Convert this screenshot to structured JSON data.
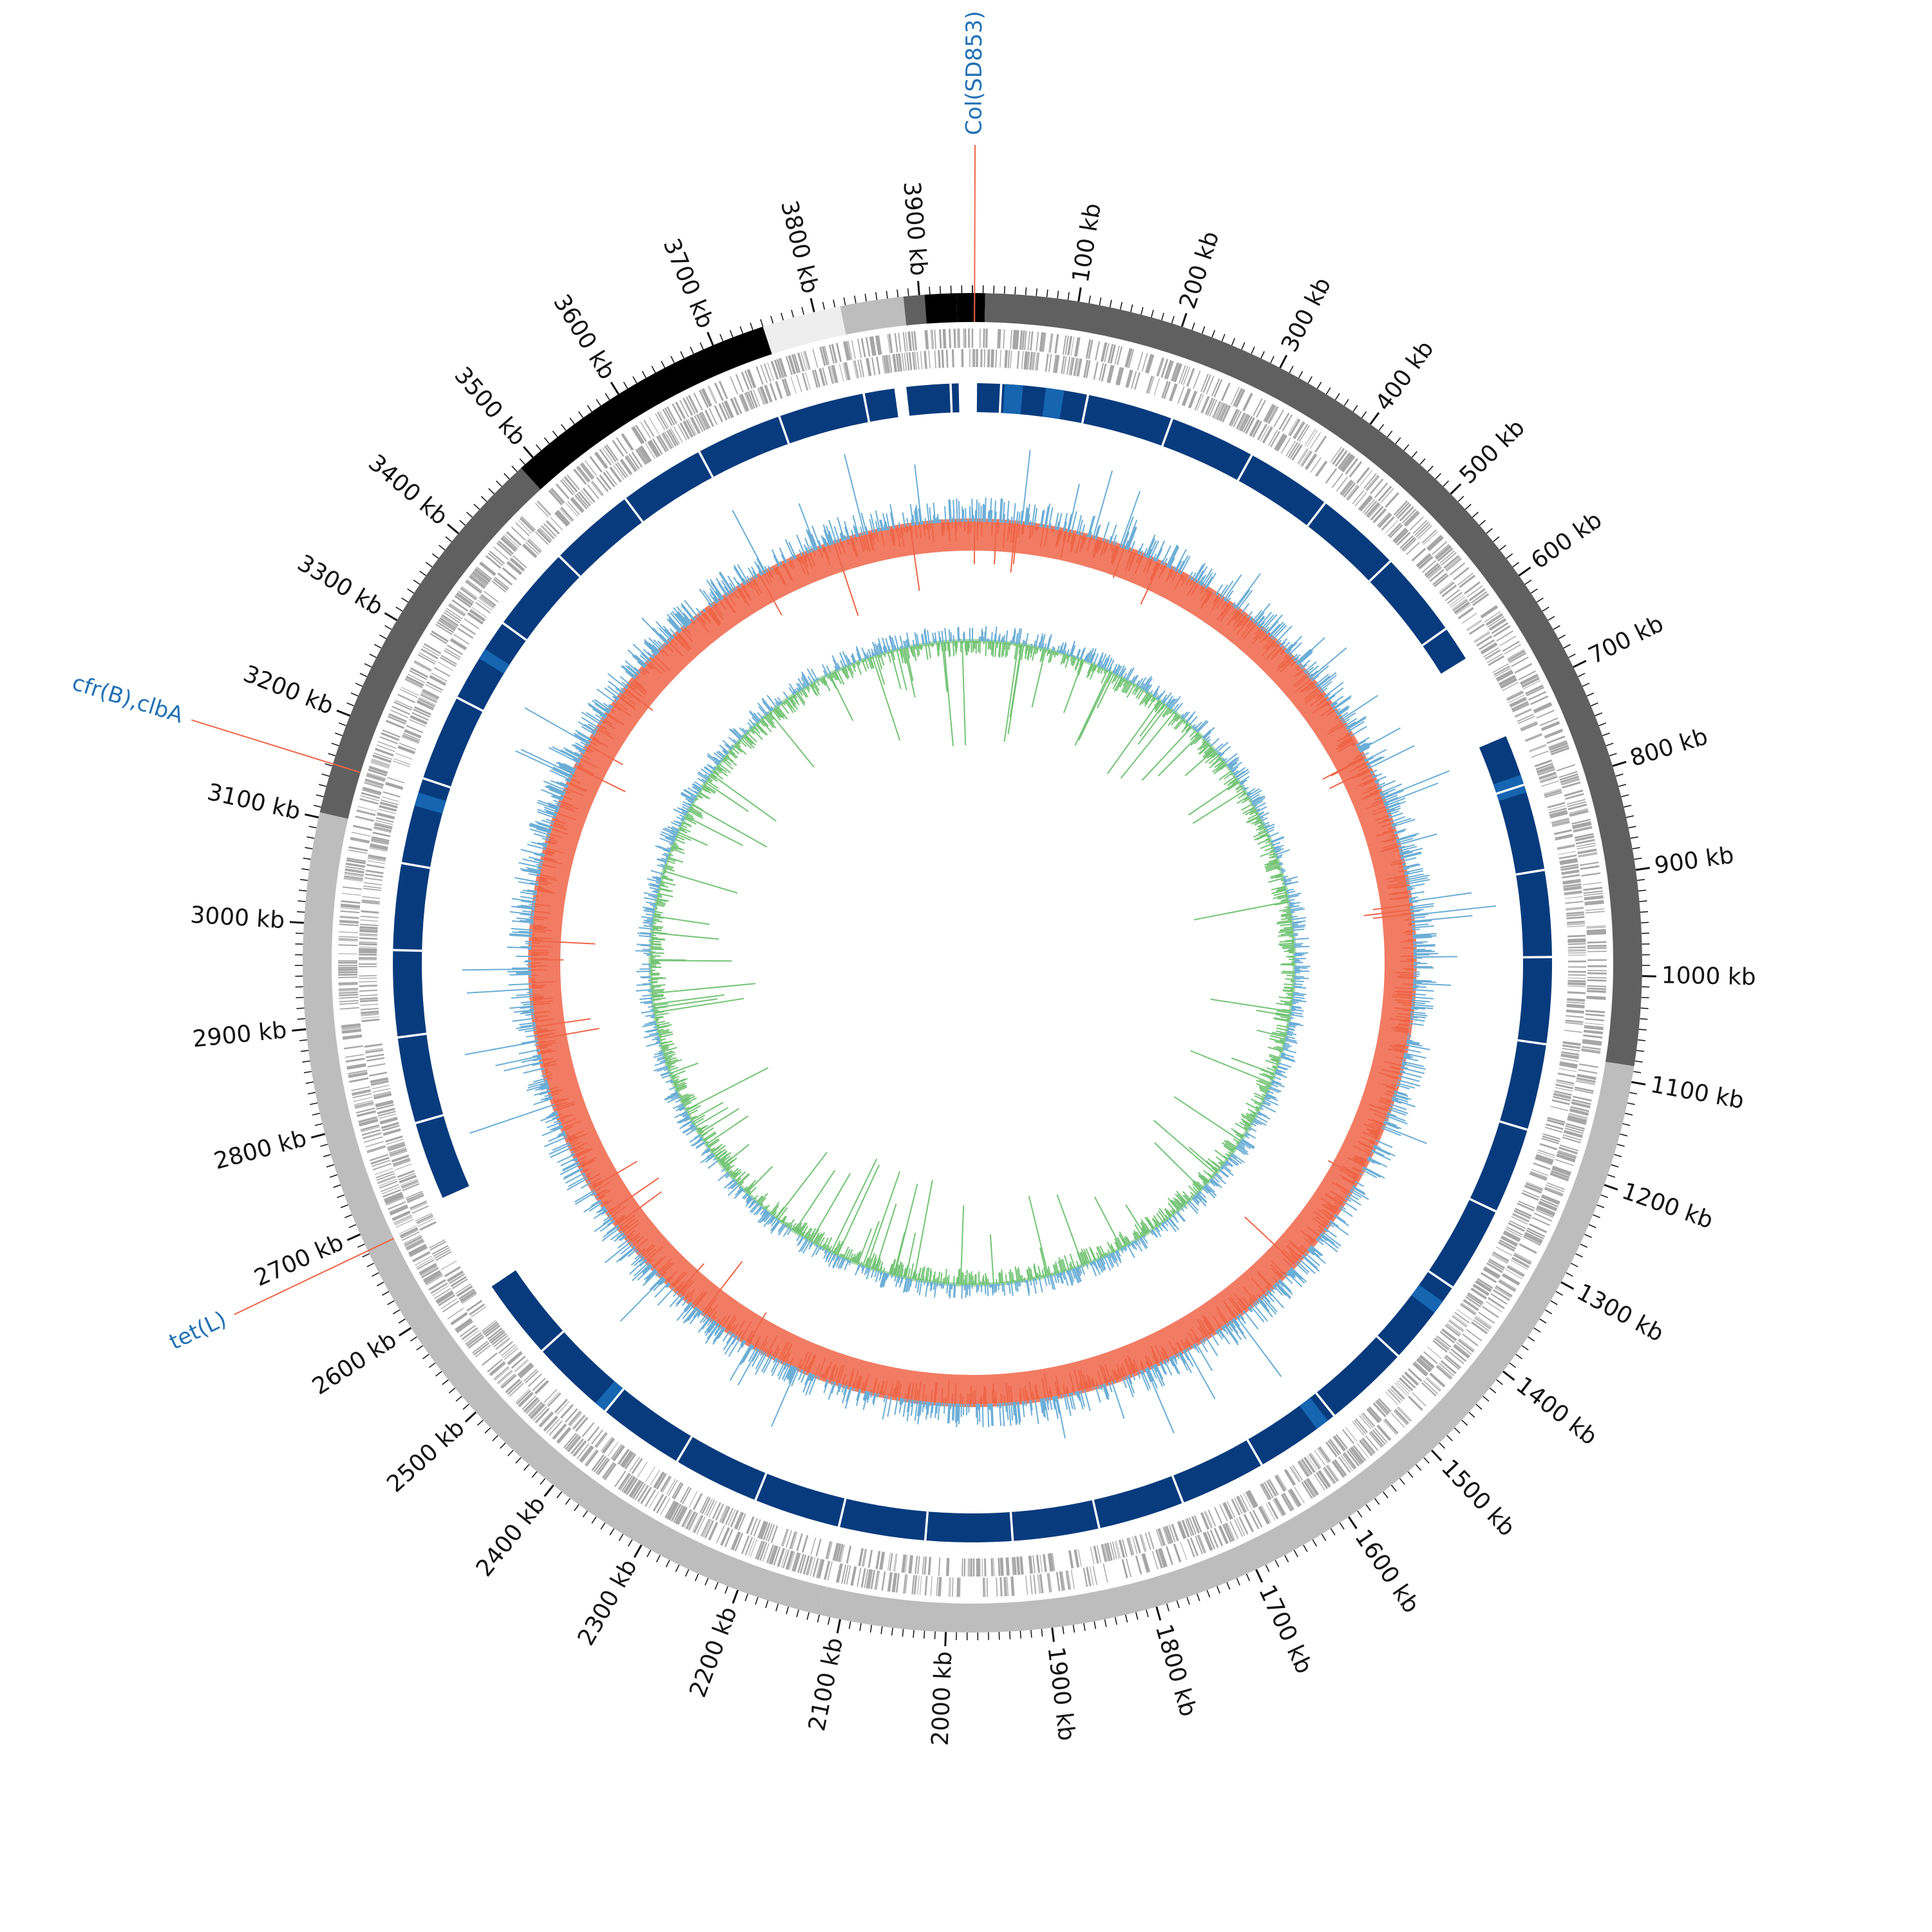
{
  "genome": {
    "length_kb": 3950,
    "tick_labels": [
      "100 kb",
      "200 kb",
      "300 kb",
      "400 kb",
      "500 kb",
      "600 kb",
      "700 kb",
      "800 kb",
      "900 kb",
      "1000 kb",
      "1100 kb",
      "1200 kb",
      "1300 kb",
      "1400 kb",
      "1500 kb",
      "1600 kb",
      "1700 kb",
      "1800 kb",
      "1900 kb",
      "2000 kb",
      "2100 kb",
      "2200 kb",
      "2300 kb",
      "2400 kb",
      "2500 kb",
      "2600 kb",
      "2700 kb",
      "2800 kb",
      "2900 kb",
      "3000 kb",
      "3100 kb",
      "3200 kb",
      "3300 kb",
      "3400 kb",
      "3500 kb",
      "3600 kb",
      "3700 kb",
      "3800 kb",
      "3900 kb"
    ]
  },
  "contigs": [
    {
      "start": 0,
      "end": 12,
      "color": "#000000"
    },
    {
      "start": 12,
      "end": 1085,
      "color": "#606060"
    },
    {
      "start": 1085,
      "end": 2120,
      "color": "#bdbdbd"
    },
    {
      "start": 2120,
      "end": 3105,
      "color": "#bdbdbd"
    },
    {
      "start": 3105,
      "end": 3485,
      "color": "#606060"
    },
    {
      "start": 3485,
      "end": 3750,
      "color": "#000000"
    },
    {
      "start": 3750,
      "end": 3825,
      "color": "#eeeeee"
    },
    {
      "start": 3825,
      "end": 3885,
      "color": "#bdbdbd"
    },
    {
      "start": 3885,
      "end": 3905,
      "color": "#606060"
    },
    {
      "start": 3905,
      "end": 3935,
      "color": "#000000"
    },
    {
      "start": 3935,
      "end": 3950,
      "color": "#000000"
    }
  ],
  "blast_blocks": [
    {
      "start": 5,
      "end": 640,
      "color": "#083b7d"
    },
    {
      "start": 735,
      "end": 2590,
      "color": "#083b7d"
    },
    {
      "start": 2700,
      "end": 3865,
      "color": "#083b7d"
    },
    {
      "start": 3878,
      "end": 3935,
      "color": "#083b7d"
    }
  ],
  "blast_highlights": [
    {
      "start": 35,
      "end": 55,
      "color": "#1565b0"
    },
    {
      "start": 80,
      "end": 100,
      "color": "#1565b0"
    },
    {
      "start": 780,
      "end": 800,
      "color": "#1565b0"
    },
    {
      "start": 1380,
      "end": 1395,
      "color": "#1565b0"
    },
    {
      "start": 1560,
      "end": 1575,
      "color": "#1565b0"
    },
    {
      "start": 2405,
      "end": 2420,
      "color": "#1565b0"
    },
    {
      "start": 3135,
      "end": 3150,
      "color": "#1565b0"
    },
    {
      "start": 3310,
      "end": 3322,
      "color": "#1565b0"
    }
  ],
  "gc_tracks": {
    "outer_positive_color": "#ef6548",
    "outer_negative_color": "#6baed6",
    "inner_positive_color": "#6baed6",
    "inner_negative_color": "#74c476",
    "cds_color": "#a6a6a6"
  },
  "annotations": [
    {
      "label": "Col(SD853)",
      "position_kb": 2,
      "color": "#2171b5",
      "line_color": "#ef6548"
    },
    {
      "label": "cfr(B),clbA",
      "position_kb": 3152,
      "color": "#2171b5",
      "line_color": "#ef6548"
    },
    {
      "label": "tet(L)",
      "position_kb": 2683,
      "color": "#2171b5",
      "line_color": "#ef6548"
    }
  ]
}
